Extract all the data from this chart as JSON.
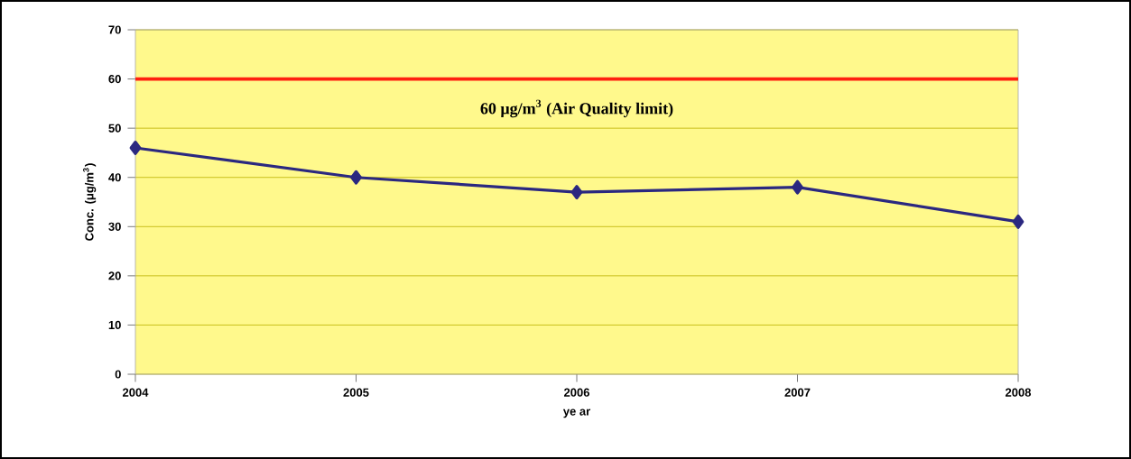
{
  "chart_data": {
    "type": "line",
    "xlabel": "ye ar",
    "ylabel": "Conc. (μg/m$^{3}$)",
    "x": [
      2004,
      2005,
      2006,
      2007,
      2008
    ],
    "series": [
      {
        "color": "#2b2880",
        "values": [
          46,
          40,
          37,
          38,
          31
        ]
      }
    ],
    "xlim": [
      2004,
      2008
    ],
    "xticks": [
      2004,
      2005,
      2006,
      2007,
      2008
    ],
    "ylim": [
      0,
      70
    ],
    "yticks": [
      0,
      10,
      20,
      30,
      40,
      50,
      60,
      70
    ],
    "ref_lines": [
      {
        "axis": "y",
        "value": 60,
        "label": "60 μg/m$^{3}$ (Air Quality limit)",
        "color": "#ff2010"
      }
    ],
    "grid": "y",
    "marker": "diamond",
    "line_style": "solid"
  }
}
